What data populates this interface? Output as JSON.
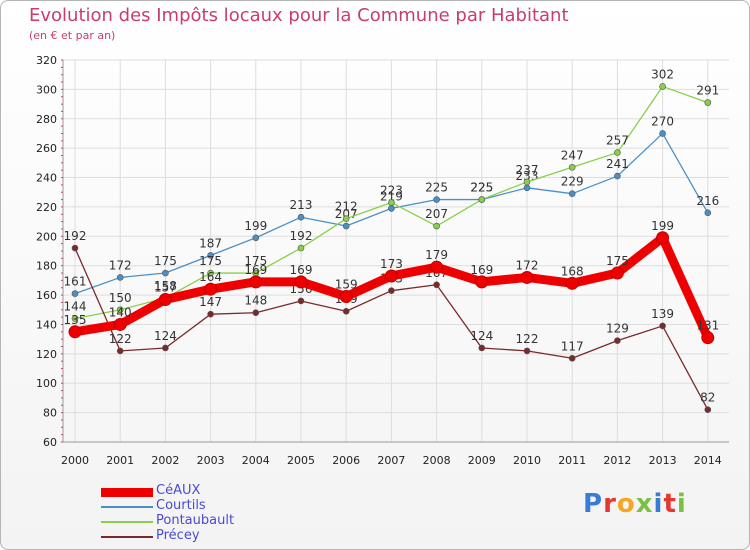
{
  "title": "Evolution des Impôts locaux pour la Commune par Habitant",
  "subtitle": "(en € et par an)",
  "logo_text": "Proxiti",
  "chart_data": {
    "type": "line",
    "x": [
      "2000",
      "2001",
      "2002",
      "2003",
      "2004",
      "2005",
      "2006",
      "2007",
      "2008",
      "2009",
      "2010",
      "2011",
      "2012",
      "2013",
      "2014"
    ],
    "ylim": [
      60,
      320
    ],
    "yticks": [
      60,
      80,
      100,
      120,
      140,
      160,
      180,
      200,
      220,
      240,
      260,
      280,
      300,
      320
    ],
    "grid": true,
    "legend_position": "bottom-left",
    "series": [
      {
        "name": "Courtils",
        "color": "#4a90c8",
        "values": [
          161,
          172,
          175,
          187,
          199,
          213,
          207,
          219,
          225,
          225,
          233,
          229,
          241,
          270,
          216
        ]
      },
      {
        "name": "Pontaubault",
        "color": "#88d04a",
        "values": [
          144,
          150,
          158,
          175,
          175,
          192,
          212,
          223,
          207,
          225,
          237,
          247,
          257,
          302,
          291
        ]
      },
      {
        "name": "Précey",
        "color": "#7a2a2a",
        "values": [
          192,
          122,
          124,
          147,
          148,
          156,
          149,
          163,
          167,
          124,
          122,
          117,
          129,
          139,
          82
        ]
      },
      {
        "name": "CéAUX",
        "color": "#ee0000",
        "values": [
          135,
          140,
          157,
          164,
          169,
          169,
          159,
          173,
          179,
          169,
          172,
          168,
          175,
          199,
          131
        ]
      }
    ],
    "data_labels": [
      [
        "161",
        "172",
        "175",
        "187",
        "199",
        "213",
        "207",
        "219",
        "225",
        "225",
        "233",
        "229",
        "241",
        "270",
        "216"
      ],
      [
        "144",
        "150",
        "158",
        "175",
        "175",
        "192",
        "212",
        "223",
        "207",
        "225",
        "237",
        "247",
        "257",
        "302",
        "291"
      ],
      [
        "192",
        "122",
        "124",
        "147",
        "148",
        "156",
        "149",
        "163",
        "167",
        "124",
        "122",
        "117",
        "129",
        "139",
        "82"
      ],
      [
        "135",
        "140",
        "157",
        "164",
        "169",
        "169",
        "159",
        "173",
        "179",
        "169",
        "172",
        "168",
        "175",
        "199",
        "131"
      ]
    ]
  }
}
